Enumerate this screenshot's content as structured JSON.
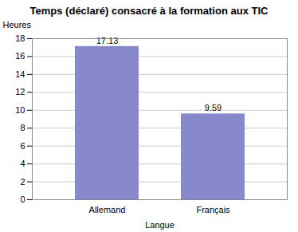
{
  "chart_data": {
    "type": "bar",
    "title": "Temps (déclaré) consacré à la formation aux TIC",
    "categories": [
      "Allemand",
      "Français"
    ],
    "values": [
      17.13,
      9.59
    ],
    "color": "#8888cc",
    "xlabel": "Langue",
    "ylabel": "Heures",
    "ylim": [
      0,
      18
    ],
    "yticks": [
      0,
      2,
      4,
      6,
      8,
      10,
      12,
      14,
      16,
      18
    ],
    "grid": true,
    "data_labels": true
  }
}
